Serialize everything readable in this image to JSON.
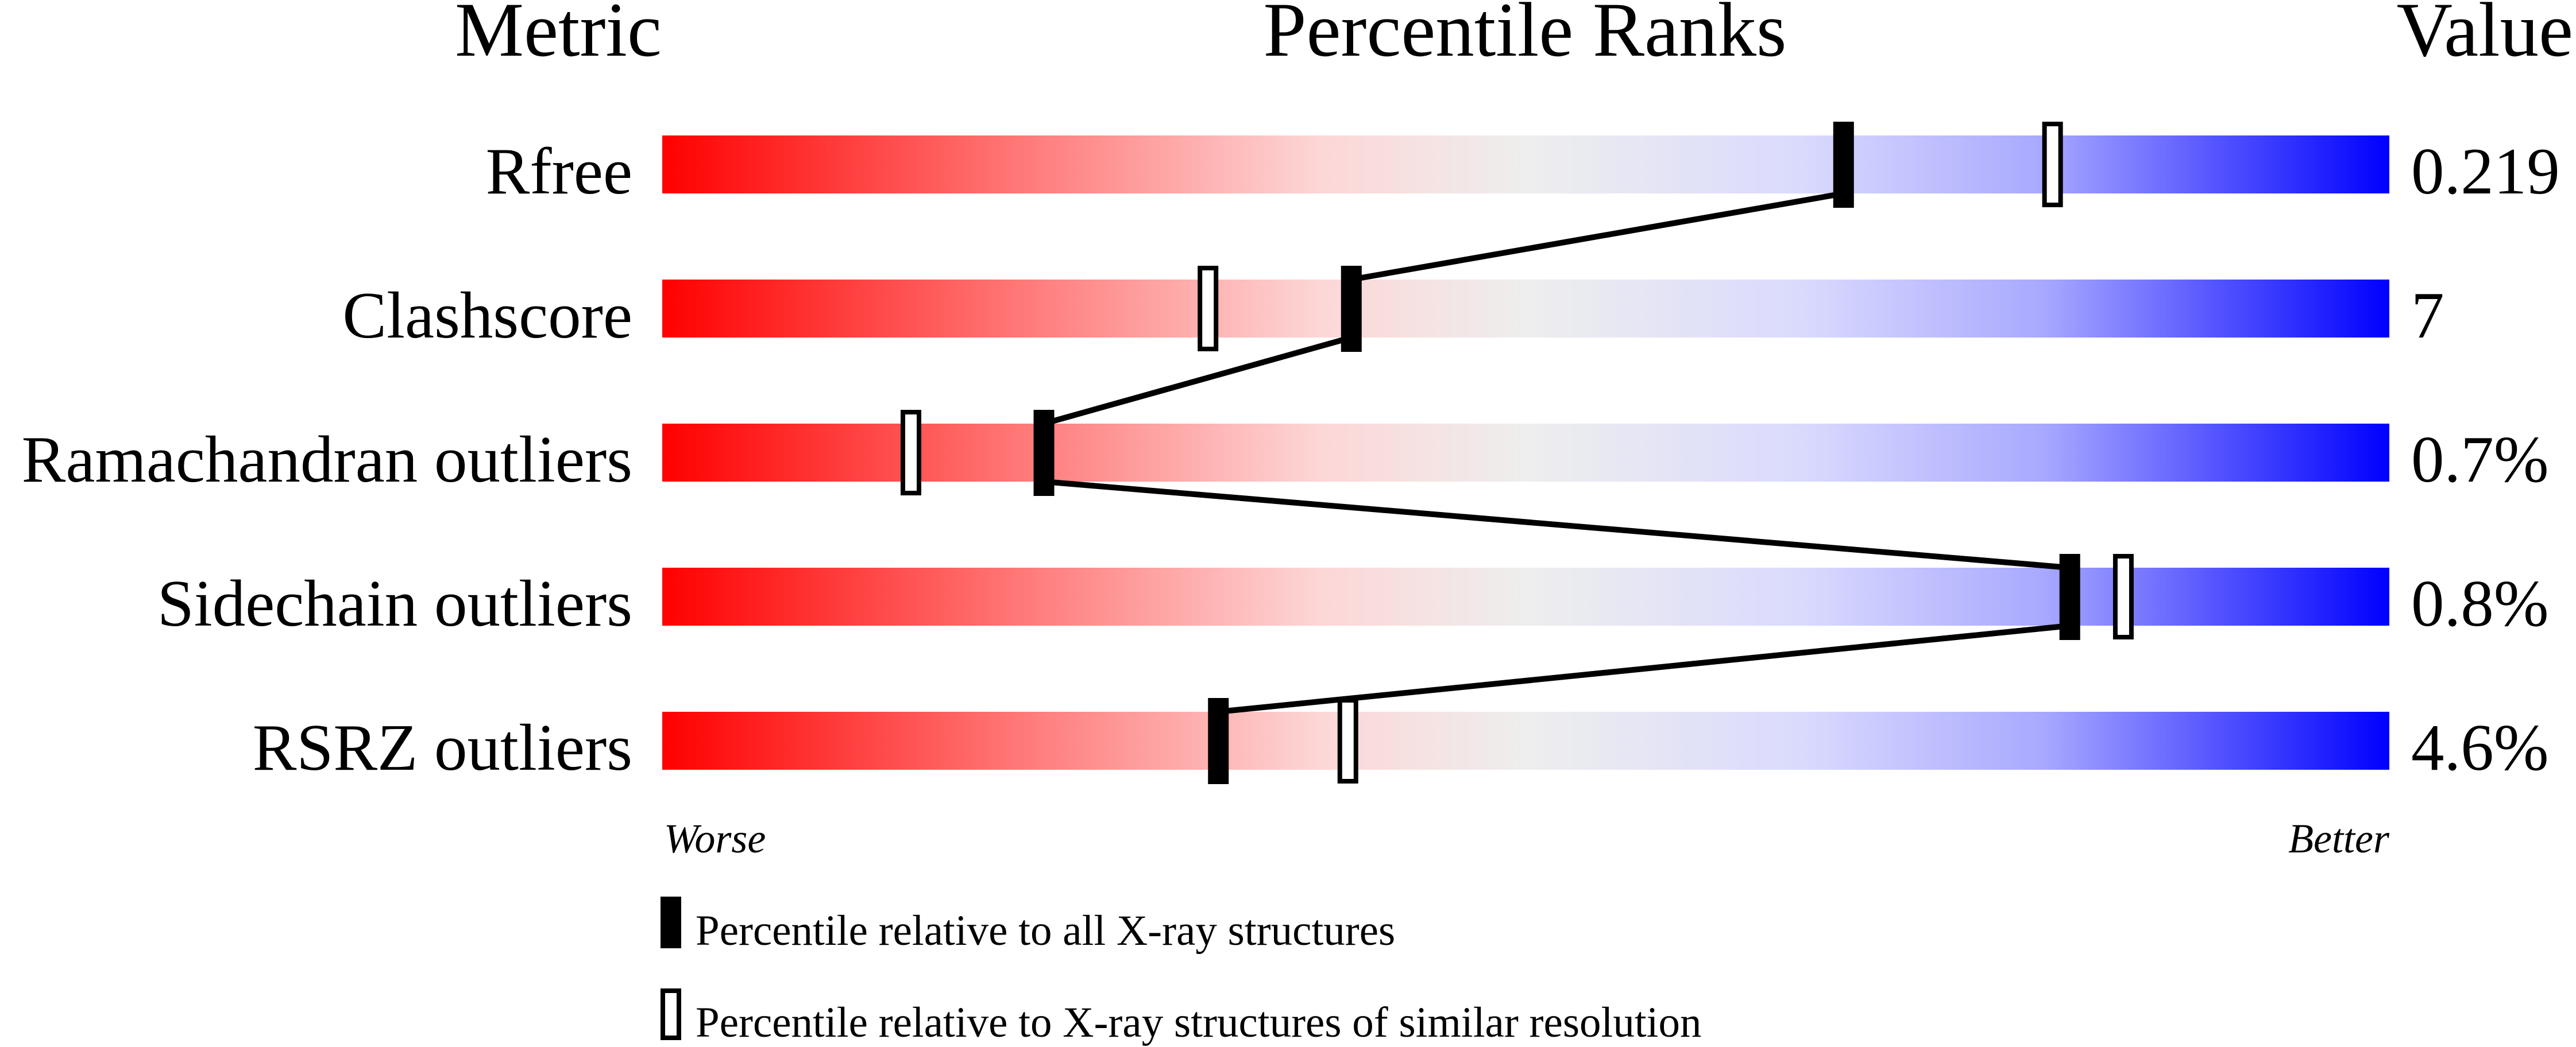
{
  "chart_data": {
    "type": "percentile-ranks",
    "headers": {
      "metric": "Metric",
      "ranks": "Percentile Ranks",
      "value": "Value"
    },
    "xlim": [
      0,
      100
    ],
    "axis_labels": {
      "left": "Worse",
      "right": "Better"
    },
    "rows": [
      {
        "metric": "Rfree",
        "value": "0.219",
        "percentile_all": 68.4,
        "percentile_similar": 80.5
      },
      {
        "metric": "Clashscore",
        "value": "7",
        "percentile_all": 39.9,
        "percentile_similar": 31.6
      },
      {
        "metric": "Ramachandran outliers",
        "value": "0.7%",
        "percentile_all": 22.1,
        "percentile_similar": 14.4
      },
      {
        "metric": "Sidechain outliers",
        "value": "0.8%",
        "percentile_all": 81.5,
        "percentile_similar": 84.6
      },
      {
        "metric": "RSRZ outliers",
        "value": "4.6%",
        "percentile_all": 32.2,
        "percentile_similar": 39.7
      }
    ],
    "legend": [
      {
        "marker": "filled",
        "label": "Percentile relative to all X-ray structures"
      },
      {
        "marker": "open",
        "label": "Percentile relative to X-ray structures of similar resolution"
      }
    ],
    "colors": {
      "worse": "#ff0000",
      "middle": "#eeeeee",
      "better": "#0000ff",
      "marker": "#000000"
    }
  }
}
